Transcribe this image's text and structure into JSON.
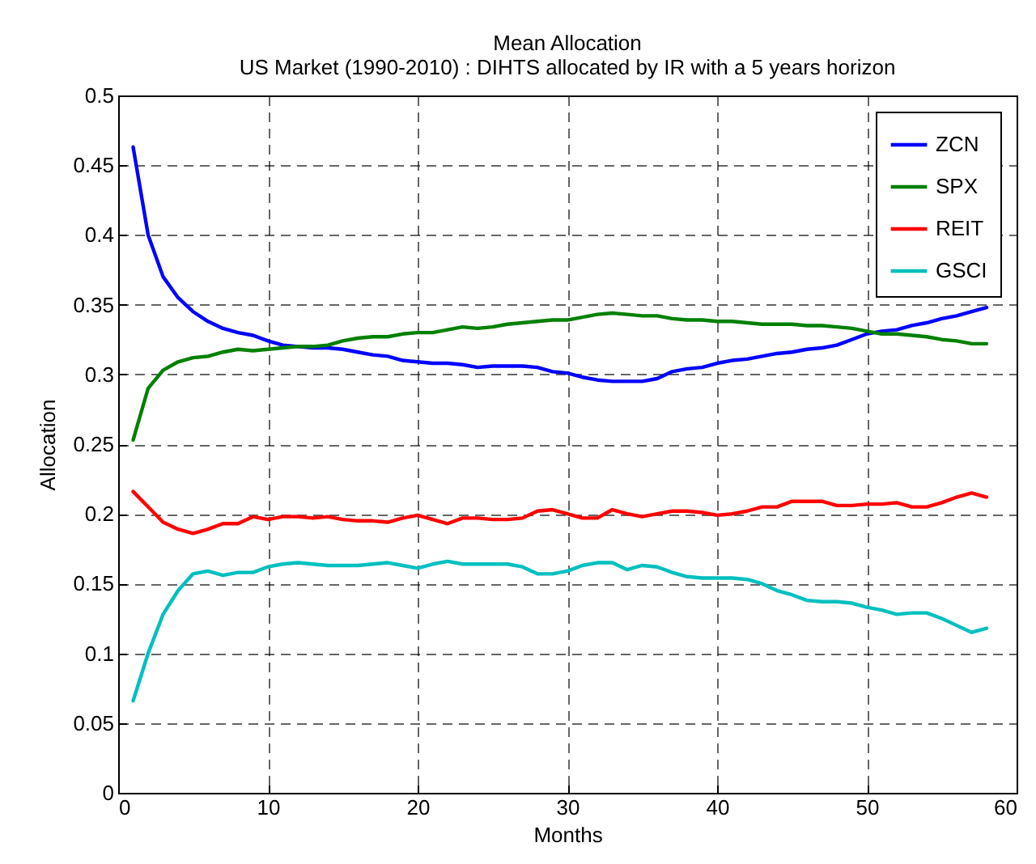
{
  "chart_data": {
    "type": "line",
    "title": "Mean Allocation",
    "subtitle": "US Market (1990-2010) : DIHTS  allocated by IR with a 5 years horizon",
    "xlabel": "Months",
    "ylabel": "Allocation",
    "x": [
      1,
      2,
      3,
      4,
      5,
      6,
      7,
      8,
      9,
      10,
      11,
      12,
      13,
      14,
      15,
      16,
      17,
      18,
      19,
      20,
      21,
      22,
      23,
      24,
      25,
      26,
      27,
      28,
      29,
      30,
      31,
      32,
      33,
      34,
      35,
      36,
      37,
      38,
      39,
      40,
      41,
      42,
      43,
      44,
      45,
      46,
      47,
      48,
      49,
      50,
      51,
      52,
      53,
      54,
      55,
      56,
      57,
      58
    ],
    "series": [
      {
        "name": "ZCN",
        "color": "#0000ff",
        "values": [
          0.463,
          0.4,
          0.37,
          0.355,
          0.345,
          0.338,
          0.333,
          0.33,
          0.328,
          0.324,
          0.321,
          0.32,
          0.319,
          0.319,
          0.318,
          0.316,
          0.314,
          0.313,
          0.31,
          0.309,
          0.308,
          0.308,
          0.307,
          0.305,
          0.306,
          0.306,
          0.306,
          0.305,
          0.302,
          0.301,
          0.298,
          0.296,
          0.295,
          0.295,
          0.295,
          0.297,
          0.302,
          0.304,
          0.305,
          0.308,
          0.31,
          0.311,
          0.313,
          0.315,
          0.316,
          0.318,
          0.319,
          0.321,
          0.325,
          0.329,
          0.331,
          0.332,
          0.335,
          0.337,
          0.34,
          0.342,
          0.345,
          0.348
        ]
      },
      {
        "name": "SPX",
        "color": "#008000",
        "values": [
          0.253,
          0.29,
          0.303,
          0.309,
          0.312,
          0.313,
          0.316,
          0.318,
          0.317,
          0.318,
          0.319,
          0.32,
          0.32,
          0.321,
          0.324,
          0.326,
          0.327,
          0.327,
          0.329,
          0.33,
          0.33,
          0.332,
          0.334,
          0.333,
          0.334,
          0.336,
          0.337,
          0.338,
          0.339,
          0.339,
          0.341,
          0.343,
          0.344,
          0.343,
          0.342,
          0.342,
          0.34,
          0.339,
          0.339,
          0.338,
          0.338,
          0.337,
          0.336,
          0.336,
          0.336,
          0.335,
          0.335,
          0.334,
          0.333,
          0.331,
          0.329,
          0.329,
          0.328,
          0.327,
          0.325,
          0.324,
          0.322,
          0.322
        ]
      },
      {
        "name": "REIT",
        "color": "#ff0000",
        "values": [
          0.216,
          0.205,
          0.194,
          0.189,
          0.186,
          0.189,
          0.193,
          0.193,
          0.198,
          0.196,
          0.198,
          0.198,
          0.197,
          0.198,
          0.196,
          0.195,
          0.195,
          0.194,
          0.197,
          0.199,
          0.196,
          0.193,
          0.197,
          0.197,
          0.196,
          0.196,
          0.197,
          0.202,
          0.203,
          0.2,
          0.197,
          0.197,
          0.203,
          0.2,
          0.198,
          0.2,
          0.202,
          0.202,
          0.201,
          0.199,
          0.2,
          0.202,
          0.205,
          0.205,
          0.209,
          0.209,
          0.209,
          0.206,
          0.206,
          0.207,
          0.207,
          0.208,
          0.205,
          0.205,
          0.208,
          0.212,
          0.215,
          0.212
        ]
      },
      {
        "name": "GSCI",
        "color": "#00bfbf",
        "values": [
          0.066,
          0.1,
          0.128,
          0.145,
          0.157,
          0.159,
          0.156,
          0.158,
          0.158,
          0.162,
          0.164,
          0.165,
          0.164,
          0.163,
          0.163,
          0.163,
          0.164,
          0.165,
          0.163,
          0.161,
          0.164,
          0.166,
          0.164,
          0.164,
          0.164,
          0.164,
          0.162,
          0.157,
          0.157,
          0.159,
          0.163,
          0.165,
          0.165,
          0.16,
          0.163,
          0.162,
          0.158,
          0.155,
          0.154,
          0.154,
          0.154,
          0.153,
          0.15,
          0.145,
          0.142,
          0.138,
          0.137,
          0.137,
          0.136,
          0.133,
          0.131,
          0.128,
          0.129,
          0.129,
          0.125,
          0.12,
          0.115,
          0.118
        ]
      }
    ],
    "xlim": [
      0,
      60
    ],
    "xticks": [
      0,
      10,
      20,
      30,
      40,
      50,
      60
    ],
    "ylim": [
      0,
      0.5
    ],
    "yticks": [
      0,
      0.05,
      0.1,
      0.15,
      0.2,
      0.25,
      0.3,
      0.35,
      0.4,
      0.45,
      0.5
    ],
    "grid": true,
    "legend": "top right",
    "line_style": "solid",
    "marker": "none"
  }
}
